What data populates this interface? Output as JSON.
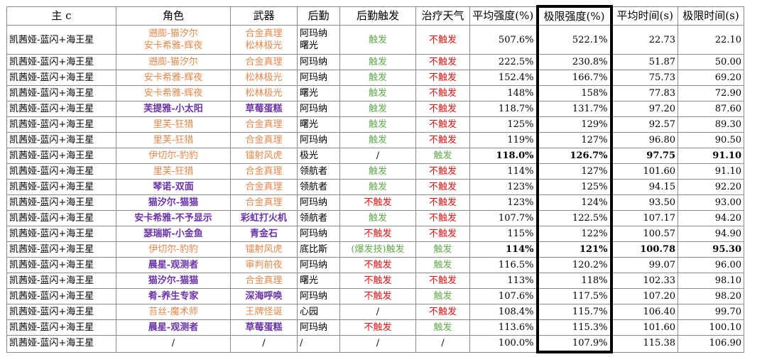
{
  "headers": [
    "主 c",
    "角色",
    "武器",
    "后勤",
    "后勤触发",
    "治疗天气",
    "平均强度(%)",
    "极限强度(%)",
    "平均时间(s)",
    "极限时间(s)"
  ],
  "rows": [
    {
      "main": "凯茜娅-蓝闪+海王星",
      "role": [
        "遡膨-猫汐尔",
        "安卡希雅-辉夜"
      ],
      "role_style": "orange",
      "weapon": [
        "合金真理",
        "松林极光"
      ],
      "weapon_style": "orange",
      "support": [
        "阿玛纳",
        "曙光"
      ],
      "trigger": "触发",
      "trigger_style": "green",
      "weather": "不触发",
      "weather_style": "red",
      "avg": "507.6%",
      "max": "522.1%",
      "avg_t": "22.73",
      "max_t": "22.10",
      "bold": false
    },
    {
      "main": "凯茜娅-蓝闪+海王星",
      "role": [
        "遡膨-猫汐尔"
      ],
      "role_style": "orange",
      "weapon": [
        "合金真理"
      ],
      "weapon_style": "orange",
      "support": [
        "阿玛纳"
      ],
      "trigger": "触发",
      "trigger_style": "green",
      "weather": "不触发",
      "weather_style": "red",
      "avg": "222.5%",
      "max": "230.8%",
      "avg_t": "51.87",
      "max_t": "50.00",
      "bold": false
    },
    {
      "main": "凯茜娅-蓝闪+海王星",
      "role": [
        "安卡希雅-辉夜"
      ],
      "role_style": "orange",
      "weapon": [
        "松林极光"
      ],
      "weapon_style": "orange",
      "support": [
        "阿玛纳"
      ],
      "trigger": "触发",
      "trigger_style": "green",
      "weather": "不触发",
      "weather_style": "red",
      "avg": "152.4%",
      "max": "166.7%",
      "avg_t": "75.73",
      "max_t": "69.20",
      "bold": false
    },
    {
      "main": "凯茜娅-蓝闪+海王星",
      "role": [
        "安卡希雅-辉夜"
      ],
      "role_style": "orange",
      "weapon": [
        "松林极光"
      ],
      "weapon_style": "orange",
      "support": [
        "曙光"
      ],
      "trigger": "触发",
      "trigger_style": "green",
      "weather": "不触发",
      "weather_style": "red",
      "avg": "148%",
      "max": "158%",
      "avg_t": "77.83",
      "max_t": "72.90",
      "bold": false
    },
    {
      "main": "凯茜娅-蓝闪+海王星",
      "role": [
        "芙提雅-小太阳"
      ],
      "role_style": "purple",
      "weapon": [
        "草莓蛋糕"
      ],
      "weapon_style": "purple",
      "support": [
        "阿玛纳"
      ],
      "trigger": "触发",
      "trigger_style": "green",
      "weather": "不触发",
      "weather_style": "red",
      "avg": "118.7%",
      "max": "131.7%",
      "avg_t": "97.20",
      "max_t": "87.60",
      "bold": false
    },
    {
      "main": "凯茜娅-蓝闪+海王星",
      "role": [
        "里芙-狂猎"
      ],
      "role_style": "orange",
      "weapon": [
        "合金真理"
      ],
      "weapon_style": "orange",
      "support": [
        "曙光"
      ],
      "trigger": "触发",
      "trigger_style": "green",
      "weather": "不触发",
      "weather_style": "red",
      "avg": "125%",
      "max": "129%",
      "avg_t": "92.57",
      "max_t": "89.30",
      "bold": false
    },
    {
      "main": "凯茜娅-蓝闪+海王星",
      "role": [
        "里芙-狂猎"
      ],
      "role_style": "orange",
      "weapon": [
        "合金真理"
      ],
      "weapon_style": "orange",
      "support": [
        "阿玛纳"
      ],
      "trigger": "触发",
      "trigger_style": "green",
      "weather": "不触发",
      "weather_style": "red",
      "avg": "119%",
      "max": "127%",
      "avg_t": "96.80",
      "max_t": "90.50",
      "bold": false
    },
    {
      "main": "凯茜娅-蓝闪+海王星",
      "role": [
        "伊切尔-豹豹"
      ],
      "role_style": "orange",
      "weapon": [
        "镭射风虎"
      ],
      "weapon_style": "orange",
      "support": [
        "极光"
      ],
      "trigger": "/",
      "trigger_style": "",
      "weather": "触发",
      "weather_style": "green",
      "avg": "118.0%",
      "max": "126.7%",
      "avg_t": "97.75",
      "max_t": "91.10",
      "bold": true
    },
    {
      "main": "凯茜娅-蓝闪+海王星",
      "role": [
        "里芙-狂猎"
      ],
      "role_style": "orange",
      "weapon": [
        "合金真理"
      ],
      "weapon_style": "orange",
      "support": [
        "领航者"
      ],
      "trigger": "触发",
      "trigger_style": "green",
      "weather": "不触发",
      "weather_style": "red",
      "avg": "114%",
      "max": "127%",
      "avg_t": "101.60",
      "max_t": "91.10",
      "bold": false
    },
    {
      "main": "凯茜娅-蓝闪+海王星",
      "role": [
        "琴诺-双面"
      ],
      "role_style": "purple",
      "weapon": [
        "合金真理"
      ],
      "weapon_style": "orange",
      "support": [
        "领航者"
      ],
      "trigger": "触发",
      "trigger_style": "green",
      "weather": "不触发",
      "weather_style": "red",
      "avg": "123%",
      "max": "125%",
      "avg_t": "94.15",
      "max_t": "92.20",
      "bold": false
    },
    {
      "main": "凯茜娅-蓝闪+海王星",
      "role": [
        "猫汐尔-猫猫"
      ],
      "role_style": "purple",
      "weapon": [
        "合金真理"
      ],
      "weapon_style": "orange",
      "support": [
        "阿玛纳"
      ],
      "trigger": "不触发",
      "trigger_style": "red",
      "weather": "不触发",
      "weather_style": "red",
      "avg": "123%",
      "max": "124%",
      "avg_t": "93.50",
      "max_t": "93.00",
      "bold": false
    },
    {
      "main": "凯茜娅-蓝闪+海王星",
      "role": [
        "安卡希雅-不予显示"
      ],
      "role_style": "purple",
      "weapon": [
        "彩虹打火机"
      ],
      "weapon_style": "purple",
      "support": [
        "领航者"
      ],
      "trigger": "触发",
      "trigger_style": "green",
      "weather": "不触发",
      "weather_style": "red",
      "avg": "107.7%",
      "max": "122.5%",
      "avg_t": "107.17",
      "max_t": "94.20",
      "bold": false
    },
    {
      "main": "凯茜娅-蓝闪+海王星",
      "role": [
        "瑟瑞斯-小金鱼"
      ],
      "role_style": "purple",
      "weapon": [
        "青金石"
      ],
      "weapon_style": "purple",
      "support": [
        "阿玛纳"
      ],
      "trigger": "不触发",
      "trigger_style": "red",
      "weather": "不触发",
      "weather_style": "red",
      "avg": "115%",
      "max": "122%",
      "avg_t": "100.57",
      "max_t": "94.90",
      "bold": false
    },
    {
      "main": "凯茜娅-蓝闪+海王星",
      "role": [
        "伊切尔-豹豹"
      ],
      "role_style": "orange",
      "weapon": [
        "镭射风虎"
      ],
      "weapon_style": "orange",
      "support": [
        "底比斯"
      ],
      "trigger": "(爆发技)触发",
      "trigger_style": "green",
      "weather": "触发",
      "weather_style": "green",
      "avg": "114%",
      "max": "121%",
      "avg_t": "100.78",
      "max_t": "95.30",
      "bold": true
    },
    {
      "main": "凯茜娅-蓝闪+海王星",
      "role": [
        "晨星-观测者"
      ],
      "role_style": "purple",
      "weapon": [
        "审判前夜"
      ],
      "weapon_style": "orange",
      "support": [
        "阿玛纳"
      ],
      "trigger": "不触发",
      "trigger_style": "red",
      "weather": "触发",
      "weather_style": "green",
      "avg": "116.5%",
      "max": "120.2%",
      "avg_t": "99.07",
      "max_t": "96.00",
      "bold": false
    },
    {
      "main": "凯茜娅-蓝闪+海王星",
      "role": [
        "猫汐尔-猫猫"
      ],
      "role_style": "purple",
      "weapon": [
        "合金真理"
      ],
      "weapon_style": "orange",
      "support": [
        "曙光"
      ],
      "trigger": "不触发",
      "trigger_style": "red",
      "weather": "不触发",
      "weather_style": "red",
      "avg": "113%",
      "max": "118%",
      "avg_t": "102.33",
      "max_t": "98.10",
      "bold": false
    },
    {
      "main": "凯茜娅-蓝闪+海王星",
      "role": [
        "肴-养生专家"
      ],
      "role_style": "purple",
      "weapon": [
        "深海呼唤"
      ],
      "weapon_style": "purple",
      "support": [
        "阿玛纳"
      ],
      "trigger": "不触发",
      "trigger_style": "red",
      "weather": "触发",
      "weather_style": "green",
      "avg": "107.6%",
      "max": "117.5%",
      "avg_t": "107.20",
      "max_t": "98.20",
      "bold": false
    },
    {
      "main": "凯茜娅-蓝闪+海王星",
      "role": [
        "苔丝-魔术师"
      ],
      "role_style": "orange",
      "weapon": [
        "王牌怪诞"
      ],
      "weapon_style": "orange",
      "support": [
        "心园"
      ],
      "trigger": "/",
      "trigger_style": "",
      "weather": "不触发",
      "weather_style": "red",
      "avg": "108.4%",
      "max": "115.7%",
      "avg_t": "106.40",
      "max_t": "99.70",
      "bold": false
    },
    {
      "main": "凯茜娅-蓝闪+海王星",
      "role": [
        "晨星-观测者"
      ],
      "role_style": "purple",
      "weapon": [
        "草莓蛋糕"
      ],
      "weapon_style": "purple",
      "support": [
        "阿玛纳"
      ],
      "trigger": "不触发",
      "trigger_style": "red",
      "weather": "触发",
      "weather_style": "green",
      "avg": "113.6%",
      "max": "115.3%",
      "avg_t": "101.60",
      "max_t": "100.10",
      "bold": false
    },
    {
      "main": "凯茜娅-蓝闪+海王星",
      "role": [
        "/"
      ],
      "role_style": "",
      "weapon": [
        "/"
      ],
      "weapon_style": "",
      "support": [
        "/"
      ],
      "trigger": "/",
      "trigger_style": "",
      "weather": "/",
      "weather_style": "",
      "avg": "100.0%",
      "max": "107.9%",
      "avg_t": "115.38",
      "max_t": "106.90",
      "bold": false
    }
  ]
}
